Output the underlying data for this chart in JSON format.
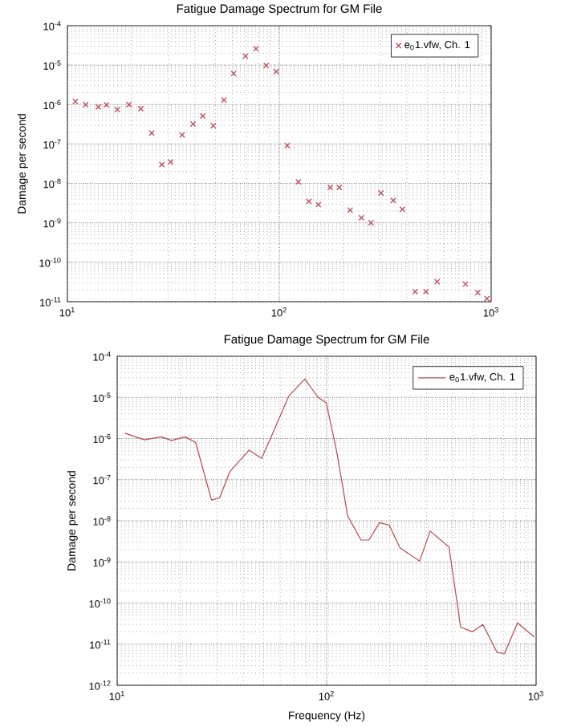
{
  "chart_data": [
    {
      "type": "scatter",
      "title": "Fatigue Damage Spectrum for GM File",
      "ylabel": "Damage per second",
      "log": "xy",
      "grid": true,
      "legend": "top right",
      "marker": "cross",
      "xlim": [
        10,
        1000
      ],
      "xticks": [
        {
          "value": 10,
          "label": "10$^{1}$"
        },
        {
          "value": 100,
          "label": "10$^{2}$"
        },
        {
          "value": 1000,
          "label": "10$^{3}$"
        }
      ],
      "ylim": [
        1e-11,
        0.0001
      ],
      "yticks": [
        {
          "value": 1e-11,
          "label": "10$^{-11}$"
        },
        {
          "value": 1e-10,
          "label": "10$^{-10}$"
        },
        {
          "value": 1e-09,
          "label": "10$^{-9}$"
        },
        {
          "value": 1e-08,
          "label": "10$^{-8}$"
        },
        {
          "value": 1e-07,
          "label": "10$^{-7}$"
        },
        {
          "value": 1e-06,
          "label": "10$^{-6}$"
        },
        {
          "value": 1e-05,
          "label": "10$^{-5}$"
        },
        {
          "value": 0.0001,
          "label": "10$^{-4}$"
        }
      ],
      "series": [
        {
          "name": "e$_{0}$1.vfw, Ch. 1",
          "color": "#c0505a",
          "x": [
            10.9,
            12.2,
            14.0,
            15.3,
            17.2,
            19.5,
            22.2,
            25.0,
            27.9,
            30.7,
            34.8,
            39.2,
            43.5,
            48.8,
            54.8,
            60.9,
            69.2,
            77.6,
            86.7,
            96.8,
            109,
            123,
            138,
            153,
            174,
            192,
            216,
            244,
            271,
            302,
            345,
            381,
            438,
            492,
            556,
            756,
            865,
            955
          ],
          "values": [
            1.2e-06,
            1e-06,
            8.7e-07,
            9.8e-07,
            7.4e-07,
            1e-06,
            7.9e-07,
            1.9e-07,
            3e-08,
            3.5e-08,
            1.7e-07,
            3.2e-07,
            5.1e-07,
            2.9e-07,
            1.3e-06,
            6.1e-06,
            1.7e-05,
            2.6e-05,
            9.8e-06,
            6.9e-06,
            9.1e-08,
            1.1e-08,
            3.5e-09,
            2.9e-09,
            7.9e-09,
            7.9e-09,
            2.1e-09,
            1.35e-09,
            1e-09,
            5.7e-09,
            3.7e-09,
            2.2e-09,
            1.8e-11,
            1.8e-11,
            3.2e-11,
            2.8e-11,
            1.7e-11,
            1.2e-11
          ]
        }
      ]
    },
    {
      "type": "line",
      "title": "Fatigue Damage Spectrum for GM File",
      "xlabel": "Frequency (Hz)",
      "ylabel": "Damage per second",
      "log": "xy",
      "grid": true,
      "legend": "top right",
      "line_style": "solid",
      "xlim": [
        10,
        1000
      ],
      "xticks": [
        {
          "value": 10,
          "label": "10$^{1}$"
        },
        {
          "value": 100,
          "label": "10$^{2}$"
        },
        {
          "value": 1000,
          "label": "10$^{3}$"
        }
      ],
      "ylim": [
        1e-12,
        0.0001
      ],
      "yticks": [
        {
          "value": 1e-12,
          "label": "10$^{-12}$"
        },
        {
          "value": 1e-11,
          "label": "10$^{-11}$"
        },
        {
          "value": 1e-10,
          "label": "10$^{-10}$"
        },
        {
          "value": 1e-09,
          "label": "10$^{-9}$"
        },
        {
          "value": 1e-08,
          "label": "10$^{-8}$"
        },
        {
          "value": 1e-07,
          "label": "10$^{-7}$"
        },
        {
          "value": 1e-06,
          "label": "10$^{-6}$"
        },
        {
          "value": 1e-05,
          "label": "10$^{-5}$"
        },
        {
          "value": 0.0001,
          "label": "10$^{-4}$"
        }
      ],
      "series": [
        {
          "name": "e$_{0}$1.vfw, Ch. 1",
          "color": "#b8474f",
          "x": [
            10.9,
            13.5,
            16.2,
            18.2,
            21.1,
            23.7,
            28.2,
            30.8,
            34.6,
            42.6,
            48.9,
            55.5,
            66.1,
            78.7,
            91.0,
            99.6,
            112,
            126,
            146,
            159,
            179,
            199,
            224,
            278,
            312,
            384,
            436,
            496,
            557,
            651,
            707,
            815,
            980
          ],
          "values": [
            1.35e-06,
            9.3e-07,
            1.1e-06,
            9e-07,
            1.1e-06,
            8e-07,
            3.2e-08,
            3.6e-08,
            1.6e-07,
            5.2e-07,
            3.3e-07,
            1.4e-06,
            1.1e-05,
            2.8e-05,
            1e-05,
            7.4e-06,
            4.5e-07,
            1.3e-08,
            3.4e-09,
            3.4e-09,
            9e-09,
            7.8e-09,
            2.2e-09,
            1.05e-09,
            5.6e-09,
            2.3e-09,
            2.6e-11,
            2e-11,
            3e-11,
            6.3e-12,
            5.9e-12,
            3.3e-11,
            1.5e-11
          ]
        }
      ]
    }
  ]
}
